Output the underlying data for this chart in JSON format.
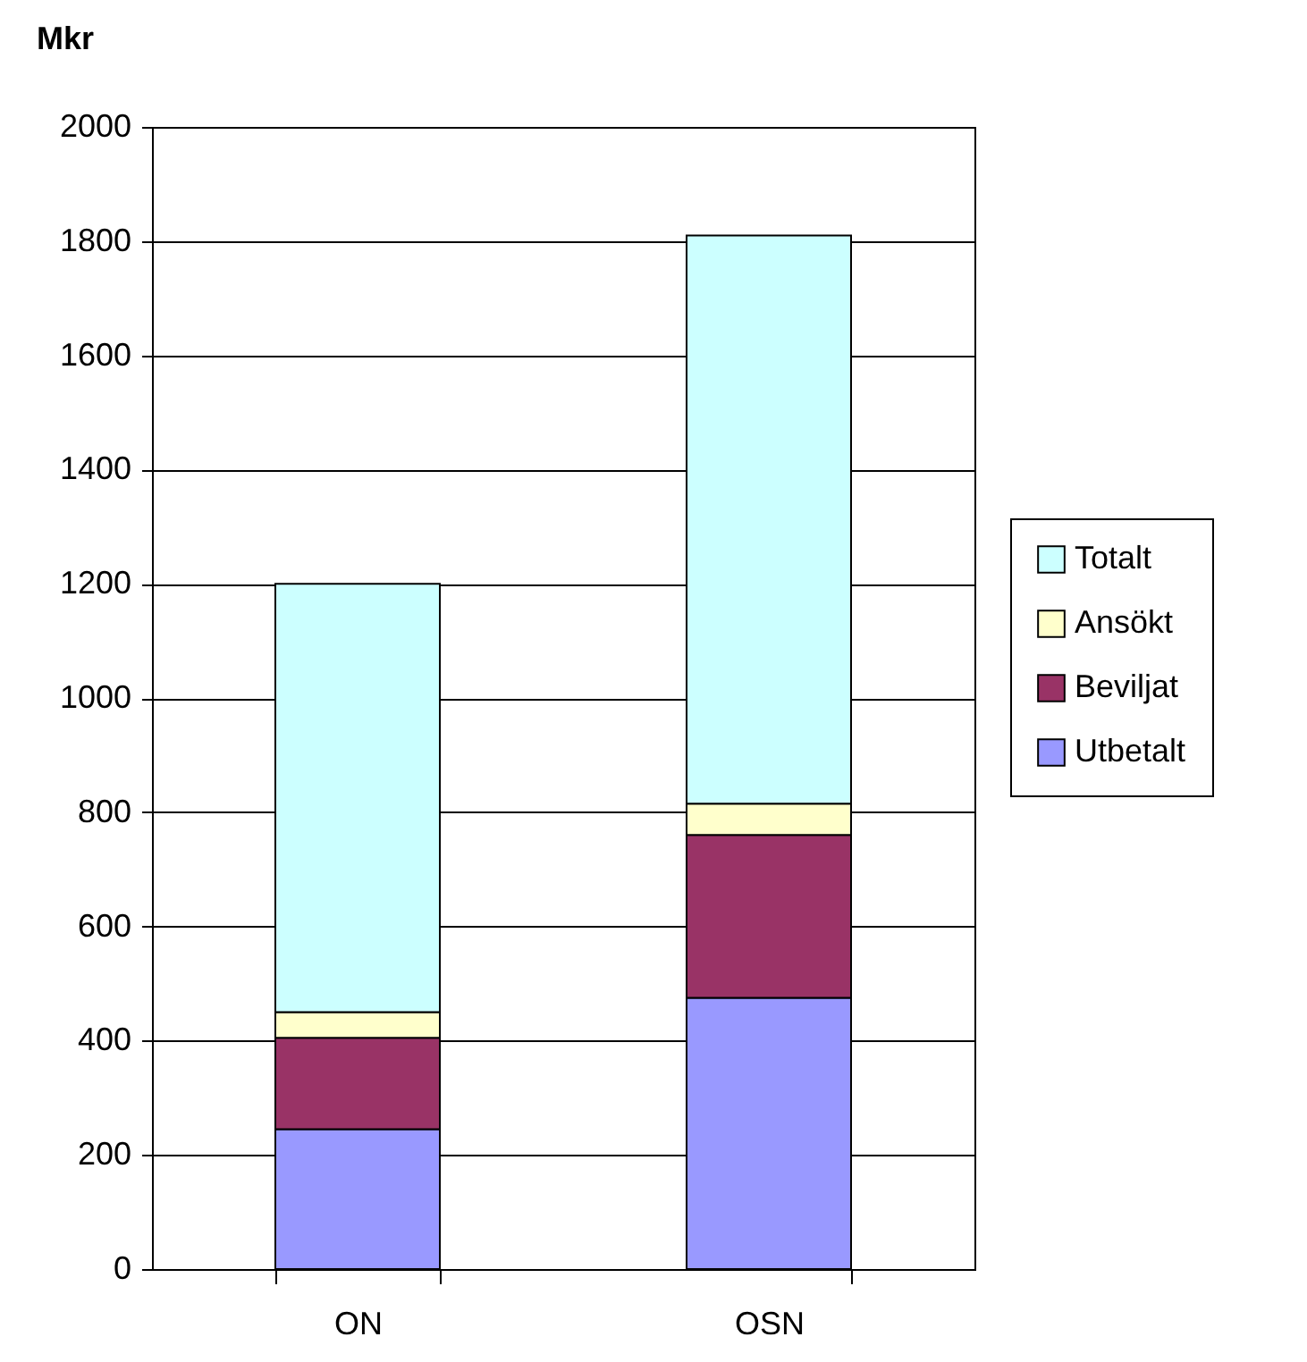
{
  "chart_data": {
    "type": "bar",
    "ylabel": "Mkr",
    "categories": [
      "ON",
      "OSN"
    ],
    "stacked": true,
    "series": [
      {
        "name": "Utbetalt",
        "color": "#9999ff",
        "values": [
          245,
          475
        ]
      },
      {
        "name": "Beviljat",
        "color": "#993366",
        "values": [
          160,
          285
        ]
      },
      {
        "name": "Ansökt",
        "color": "#ffffcc",
        "values": [
          45,
          55
        ]
      },
      {
        "name": "Totalt",
        "color": "#ccffff",
        "values": [
          750,
          995
        ]
      }
    ],
    "ylim": [
      0,
      2000
    ],
    "yticks": [
      0,
      200,
      400,
      600,
      800,
      1000,
      1200,
      1400,
      1600,
      1800,
      2000
    ],
    "grid": "y",
    "legend": "right"
  }
}
